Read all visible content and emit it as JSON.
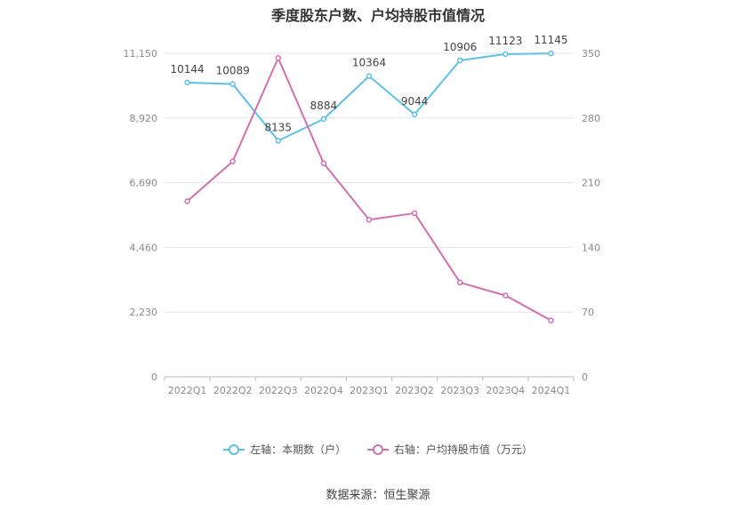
{
  "chart_data": {
    "type": "line",
    "title": "季度股东户数、户均持股市值情况",
    "categories": [
      "2022Q1",
      "2022Q2",
      "2022Q3",
      "2022Q4",
      "2023Q1",
      "2023Q2",
      "2023Q3",
      "2023Q4",
      "2024Q1"
    ],
    "left_axis": {
      "ticks": [
        "0",
        "2,230",
        "4,460",
        "6,690",
        "8,920",
        "11,150"
      ],
      "ylim": [
        0,
        11150
      ]
    },
    "right_axis": {
      "ticks": [
        "0",
        "70",
        "140",
        "210",
        "280",
        "350"
      ],
      "ylim": [
        0,
        350
      ]
    },
    "series": [
      {
        "name": "左轴：本期数（户）",
        "axis": "left",
        "color": "#5bc0eb",
        "values": [
          10144,
          10089,
          8135,
          8884,
          10364,
          9044,
          10906,
          11123,
          11145
        ],
        "labels": [
          "10144",
          "10089",
          "8135",
          "8884",
          "10364",
          "9044",
          "10906",
          "11123",
          "11145"
        ]
      },
      {
        "name": "右轴：户均持股市值（万元）",
        "axis": "right",
        "color": "#d36fb0",
        "values": [
          190,
          233,
          345,
          231,
          170,
          177,
          102,
          88,
          61
        ]
      }
    ],
    "grid": true,
    "legend_position": "bottom"
  },
  "source": "数据来源：恒生聚源"
}
